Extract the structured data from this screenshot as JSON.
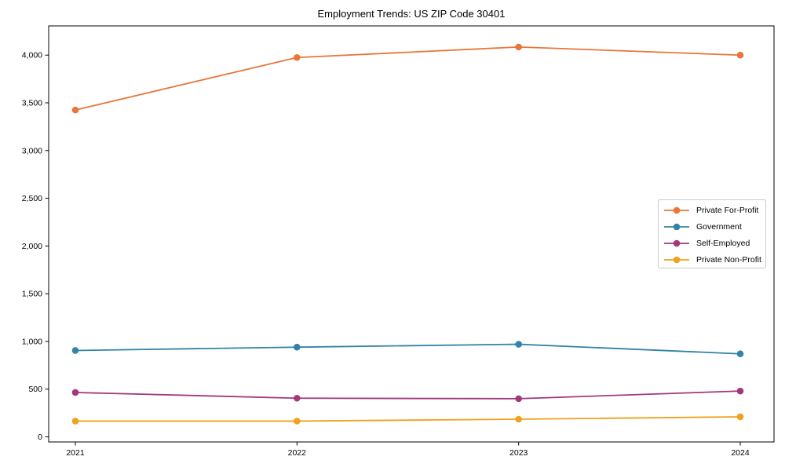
{
  "page": {
    "title": "Employment Trends: US ZIP Code 30401"
  },
  "chart_data": {
    "type": "line",
    "title": "Employment Trends: US ZIP Code 30401",
    "xlabel": "",
    "ylabel": "",
    "categories": [
      "2021",
      "2022",
      "2023",
      "2024"
    ],
    "series": [
      {
        "name": "Private For-Profit",
        "color": "#e8763a",
        "values": [
          3425,
          3975,
          4085,
          4000
        ]
      },
      {
        "name": "Government",
        "color": "#3184a5",
        "values": [
          905,
          940,
          970,
          870
        ]
      },
      {
        "name": "Self-Employed",
        "color": "#a1397c",
        "values": [
          465,
          405,
          400,
          480
        ]
      },
      {
        "name": "Private Non-Profit",
        "color": "#f0a11e",
        "values": [
          165,
          165,
          185,
          210
        ]
      }
    ],
    "yticks": [
      0,
      500,
      1000,
      1500,
      2000,
      2500,
      3000,
      3500,
      4000
    ],
    "ytick_labels": [
      "0",
      "500",
      "1,000",
      "1,500",
      "2,000",
      "2,500",
      "3,000",
      "3,500",
      "4,000"
    ],
    "ylim": [
      -50,
      4300
    ],
    "grid": false,
    "marker": "circle",
    "legend_position": "center-right",
    "axis_color": "#000000",
    "background_color": "#ffffff"
  }
}
